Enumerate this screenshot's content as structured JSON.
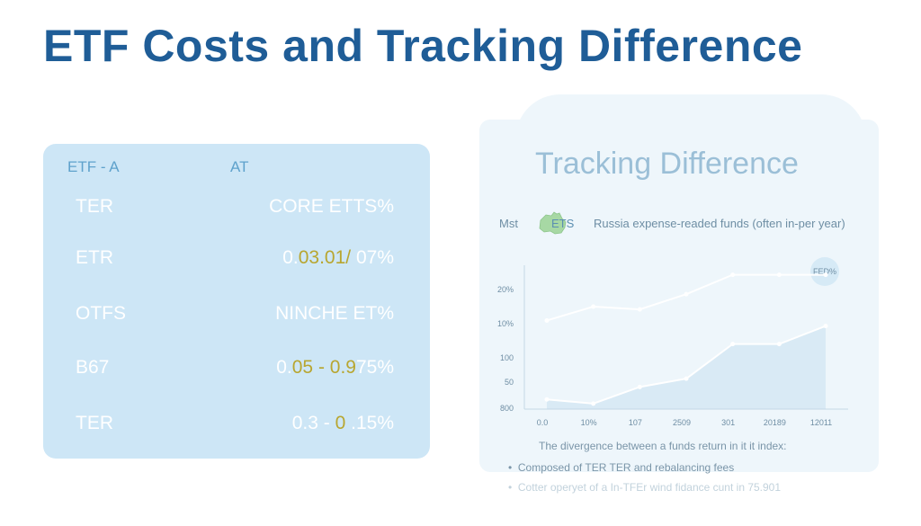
{
  "page": {
    "title": "ETF Costs and Tracking Difference"
  },
  "left_card": {
    "header": {
      "col1": "ETF - A",
      "col2": "AT"
    },
    "rows": [
      {
        "key": "TER",
        "value_pre": "CORE ETTS%",
        "value_hl": "",
        "value_post": ""
      },
      {
        "key": "ETR",
        "value_pre": "0.",
        "value_hl": "03.01/",
        "value_post": " 07%"
      },
      {
        "key": "OTFS",
        "value_pre": "NINCHE ET%",
        "value_hl": "",
        "value_post": ""
      },
      {
        "key": "B67",
        "value_pre": "0.",
        "value_hl": "05 - 0.9",
        "value_post": "75%"
      },
      {
        "key": "TER",
        "value_pre": "0.3 - ",
        "value_hl": "0",
        "value_post": " .15%"
      }
    ],
    "colors": {
      "background": "#cde6f6",
      "text": "#ffffff",
      "highlight": "#b8a630",
      "header": "#5fa2cc"
    }
  },
  "right_card": {
    "title": "Tracking Difference",
    "legend": {
      "prefix": "Mst",
      "map_icon": "map-of-australia-icon",
      "series_label": "ETS",
      "description": "Russia expense-readed funds (often in-per year)"
    },
    "badge": "FED%",
    "caption": "The divergence between a funds return in it it index:",
    "bullets": [
      "Composed of TER TER and rebalancing fees",
      "Cotter operyet of a In-TFEr wind fidance cunt in 75.901"
    ]
  },
  "chart_data": {
    "type": "line",
    "x_tick_labels": [
      "0.0",
      "10%",
      "107",
      "2509",
      "301",
      "20189",
      "12011"
    ],
    "y_tick_labels": [
      "20%",
      "10%",
      "100",
      "50",
      "800"
    ],
    "series": [
      {
        "values": [
          0.64,
          0.74,
          0.72,
          0.83,
          0.97,
          0.97,
          0.97
        ]
      },
      {
        "values": [
          0.07,
          0.04,
          0.16,
          0.22,
          0.47,
          0.47,
          0.6
        ],
        "fill": true
      }
    ],
    "grid": false,
    "colors": {
      "line": "#ffffff",
      "area": "#d9eaf5",
      "axis": "#c4d8e6"
    }
  }
}
